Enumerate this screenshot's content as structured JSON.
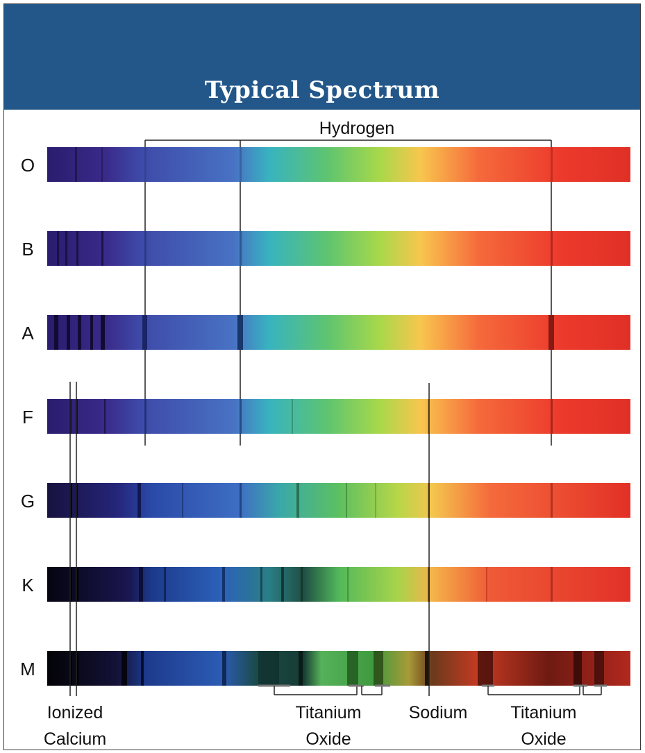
{
  "header": {
    "title": "Typical Spectrum"
  },
  "spectral_classes": [
    "O",
    "B",
    "A",
    "F",
    "G",
    "K",
    "M"
  ],
  "line_labels": {
    "hydrogen": "Hydrogen",
    "ionized_calcium": [
      "Ionized",
      "Calcium"
    ],
    "titanium_oxide_1": [
      "Titanium",
      "Oxide"
    ],
    "sodium": "Sodium",
    "titanium_oxide_2": [
      "Titanium",
      "Oxide"
    ]
  },
  "colors": {
    "header_bg": "#235789",
    "violet": "#2d1f73",
    "blue": "#3f5bb5",
    "green": "#5cc05a",
    "yellow": "#f5c64c",
    "red": "#e83428"
  }
}
